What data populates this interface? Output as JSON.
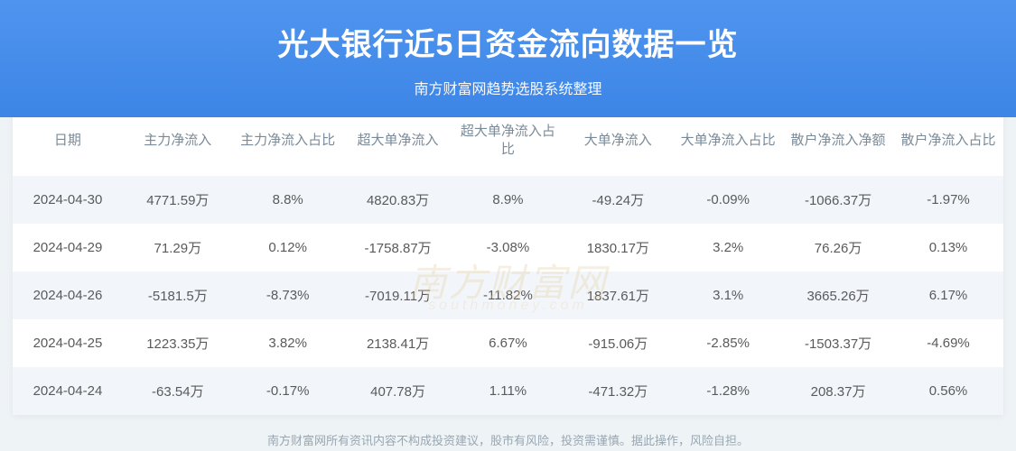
{
  "hero": {
    "title": "光大银行近5日资金流向数据一览",
    "subtitle": "南方财富网趋势选股系统整理"
  },
  "watermark": {
    "main": "南方财富网",
    "sub": "southmoney.com"
  },
  "table": {
    "columns": [
      "日期",
      "主力净流入",
      "主力净流入占比",
      "超大单净流入",
      "超大单净流入占比",
      "大单净流入",
      "大单净流入占比",
      "散户净流入净额",
      "散户净流入占比"
    ],
    "rows": [
      [
        "2024-04-30",
        "4771.59万",
        "8.8%",
        "4820.83万",
        "8.9%",
        "-49.24万",
        "-0.09%",
        "-1066.37万",
        "-1.97%"
      ],
      [
        "2024-04-29",
        "71.29万",
        "0.12%",
        "-1758.87万",
        "-3.08%",
        "1830.17万",
        "3.2%",
        "76.26万",
        "0.13%"
      ],
      [
        "2024-04-26",
        "-5181.5万",
        "-8.73%",
        "-7019.11万",
        "-11.82%",
        "1837.61万",
        "3.1%",
        "3665.26万",
        "6.17%"
      ],
      [
        "2024-04-25",
        "1223.35万",
        "3.82%",
        "2138.41万",
        "6.67%",
        "-915.06万",
        "-2.85%",
        "-1503.37万",
        "-4.69%"
      ],
      [
        "2024-04-24",
        "-63.54万",
        "-0.17%",
        "407.78万",
        "1.11%",
        "-471.32万",
        "-1.28%",
        "208.37万",
        "0.56%"
      ]
    ],
    "header_color": "#7a8a99",
    "cell_color": "#5a5a5a",
    "row_odd_bg": "#f2f6fb",
    "row_even_bg": "#ffffff",
    "font_size": 15
  },
  "footer": {
    "text": "南方财富网所有资讯内容不构成投资建议，股市有风险，投资需谨慎。据此操作，风险自担。"
  },
  "style": {
    "hero_gradient_top": "#4f95ef",
    "hero_gradient_bottom": "#3d85e6",
    "page_bg": "#eef3f6",
    "title_fontsize": 34,
    "subtitle_fontsize": 16,
    "footer_color": "#9aa6b2"
  }
}
